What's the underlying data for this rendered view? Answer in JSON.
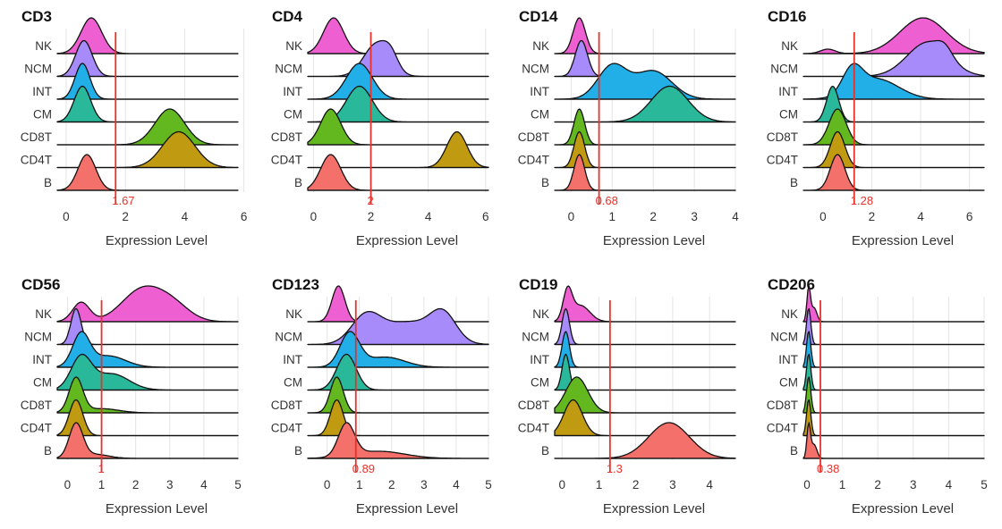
{
  "colors": {
    "NK": "#ee5fd1",
    "NCM": "#a78bfa",
    "INT": "#22aee6",
    "CM": "#2ab89a",
    "CD8T": "#62b81e",
    "CD4T": "#c09a10",
    "B": "#f4706a",
    "threshold": "#e8312a"
  },
  "chart_data": [
    {
      "type": "ridgeline",
      "title": "CD3",
      "xlabel": "Expression Level",
      "xlim": [
        -0.3,
        5.8
      ],
      "xticks": [
        0,
        2,
        4,
        6
      ],
      "threshold": 1.67,
      "threshold_label": "1.67",
      "series": [
        {
          "name": "NK",
          "peaks": [
            [
              0.85,
              0.35,
              1.0
            ]
          ]
        },
        {
          "name": "NCM",
          "peaks": [
            [
              0.6,
              0.28,
              1.0
            ]
          ]
        },
        {
          "name": "INT",
          "peaks": [
            [
              0.55,
              0.25,
              1.0
            ]
          ]
        },
        {
          "name": "CM",
          "peaks": [
            [
              0.55,
              0.28,
              1.0
            ]
          ]
        },
        {
          "name": "CD8T",
          "peaks": [
            [
              3.5,
              0.5,
              1.0
            ]
          ]
        },
        {
          "name": "CD4T",
          "peaks": [
            [
              3.8,
              0.55,
              1.1
            ]
          ]
        },
        {
          "name": "B",
          "peaks": [
            [
              0.7,
              0.3,
              1.0
            ]
          ]
        }
      ]
    },
    {
      "type": "ridgeline",
      "title": "CD4",
      "xlabel": "Expression Level",
      "xlim": [
        -0.2,
        6.1
      ],
      "xticks": [
        0,
        2,
        4,
        6
      ],
      "threshold": 2,
      "threshold_label": "2",
      "series": [
        {
          "name": "NK",
          "peaks": [
            [
              0.7,
              0.35,
              1.0
            ]
          ]
        },
        {
          "name": "NCM",
          "peaks": [
            [
              2.2,
              0.45,
              1.0
            ],
            [
              2.7,
              0.25,
              0.4
            ]
          ]
        },
        {
          "name": "INT",
          "peaks": [
            [
              1.6,
              0.45,
              1.0
            ]
          ]
        },
        {
          "name": "CM",
          "peaks": [
            [
              1.6,
              0.45,
              1.0
            ]
          ]
        },
        {
          "name": "CD8T",
          "peaks": [
            [
              0.6,
              0.35,
              1.0
            ]
          ]
        },
        {
          "name": "CD4T",
          "peaks": [
            [
              5.0,
              0.35,
              1.1
            ]
          ]
        },
        {
          "name": "B",
          "peaks": [
            [
              0.6,
              0.35,
              1.0
            ]
          ]
        }
      ]
    },
    {
      "type": "ridgeline",
      "title": "CD14",
      "xlabel": "Expression Level",
      "xlim": [
        -0.4,
        4.0
      ],
      "xticks": [
        0,
        1,
        2,
        3,
        4
      ],
      "threshold": 0.68,
      "threshold_label": "0.68",
      "series": [
        {
          "name": "NK",
          "peaks": [
            [
              0.2,
              0.15,
              1.0
            ]
          ]
        },
        {
          "name": "NCM",
          "peaks": [
            [
              0.25,
              0.15,
              1.0
            ]
          ]
        },
        {
          "name": "INT",
          "peaks": [
            [
              1.0,
              0.35,
              1.0
            ],
            [
              2.0,
              0.45,
              0.85
            ]
          ]
        },
        {
          "name": "CM",
          "peaks": [
            [
              2.4,
              0.45,
              1.2
            ]
          ]
        },
        {
          "name": "CD8T",
          "peaks": [
            [
              0.2,
              0.13,
              1.0
            ]
          ]
        },
        {
          "name": "CD4T",
          "peaks": [
            [
              0.2,
              0.13,
              1.0
            ]
          ]
        },
        {
          "name": "B",
          "peaks": [
            [
              0.2,
              0.13,
              1.0
            ]
          ]
        }
      ]
    },
    {
      "type": "ridgeline",
      "title": "CD16",
      "xlabel": "Expression Level",
      "xlim": [
        -0.8,
        6.6
      ],
      "xticks": [
        0,
        2,
        4,
        6
      ],
      "threshold": 1.28,
      "threshold_label": "1.28",
      "series": [
        {
          "name": "NK",
          "peaks": [
            [
              4.1,
              0.95,
              1.2
            ],
            [
              0.2,
              0.3,
              0.15
            ]
          ]
        },
        {
          "name": "NCM",
          "peaks": [
            [
              4.3,
              0.85,
              1.2
            ],
            [
              5.0,
              0.3,
              0.3
            ]
          ]
        },
        {
          "name": "INT",
          "peaks": [
            [
              1.2,
              0.4,
              0.9
            ],
            [
              2.2,
              0.9,
              0.75
            ]
          ]
        },
        {
          "name": "CM",
          "peaks": [
            [
              0.4,
              0.25,
              1.0
            ]
          ]
        },
        {
          "name": "CD8T",
          "peaks": [
            [
              0.6,
              0.35,
              1.0
            ]
          ]
        },
        {
          "name": "CD4T",
          "peaks": [
            [
              0.6,
              0.3,
              1.0
            ]
          ]
        },
        {
          "name": "B",
          "peaks": [
            [
              0.6,
              0.3,
              1.0
            ]
          ]
        }
      ]
    },
    {
      "type": "ridgeline",
      "title": "CD56",
      "xlabel": "Expression Level",
      "xlim": [
        -0.3,
        5.0
      ],
      "xticks": [
        0,
        1,
        2,
        3,
        4,
        5
      ],
      "threshold": 1,
      "threshold_label": "1",
      "series": [
        {
          "name": "NK",
          "peaks": [
            [
              0.4,
              0.25,
              0.6
            ],
            [
              2.2,
              0.6,
              1.0
            ],
            [
              3.1,
              0.5,
              0.45
            ]
          ]
        },
        {
          "name": "NCM",
          "peaks": [
            [
              0.25,
              0.15,
              1.0
            ]
          ]
        },
        {
          "name": "INT",
          "peaks": [
            [
              0.4,
              0.25,
              1.0
            ],
            [
              1.2,
              0.5,
              0.35
            ]
          ]
        },
        {
          "name": "CM",
          "peaks": [
            [
              0.4,
              0.3,
              1.0
            ],
            [
              1.3,
              0.5,
              0.5
            ]
          ]
        },
        {
          "name": "CD8T",
          "peaks": [
            [
              0.25,
              0.2,
              1.0
            ],
            [
              1.0,
              0.5,
              0.12
            ]
          ]
        },
        {
          "name": "CD4T",
          "peaks": [
            [
              0.25,
              0.2,
              1.0
            ]
          ]
        },
        {
          "name": "B",
          "peaks": [
            [
              0.25,
              0.2,
              1.0
            ],
            [
              0.8,
              0.4,
              0.12
            ]
          ]
        }
      ]
    },
    {
      "type": "ridgeline",
      "title": "CD123",
      "xlabel": "Expression Level",
      "xlim": [
        -0.6,
        5.0
      ],
      "xticks": [
        0,
        1,
        2,
        3,
        4,
        5
      ],
      "threshold": 0.89,
      "threshold_label": "0.89",
      "series": [
        {
          "name": "NK",
          "peaks": [
            [
              0.35,
              0.2,
              1.0
            ]
          ]
        },
        {
          "name": "NCM",
          "peaks": [
            [
              1.2,
              0.45,
              0.9
            ],
            [
              2.5,
              0.8,
              0.75
            ],
            [
              3.6,
              0.4,
              0.9
            ]
          ]
        },
        {
          "name": "INT",
          "peaks": [
            [
              0.7,
              0.3,
              1.0
            ],
            [
              1.8,
              0.6,
              0.3
            ]
          ]
        },
        {
          "name": "CM",
          "peaks": [
            [
              0.6,
              0.3,
              1.0
            ]
          ]
        },
        {
          "name": "CD8T",
          "peaks": [
            [
              0.3,
              0.2,
              1.0
            ]
          ]
        },
        {
          "name": "CD4T",
          "peaks": [
            [
              0.3,
              0.2,
              1.0
            ]
          ]
        },
        {
          "name": "B",
          "peaks": [
            [
              0.6,
              0.25,
              1.0
            ],
            [
              1.6,
              0.8,
              0.22
            ]
          ]
        }
      ]
    },
    {
      "type": "ridgeline",
      "title": "CD19",
      "xlabel": "Expression Level",
      "xlim": [
        -0.2,
        4.7
      ],
      "xticks": [
        0,
        1,
        2,
        3,
        4
      ],
      "threshold": 1.3,
      "threshold_label": "1.3",
      "series": [
        {
          "name": "NK",
          "peaks": [
            [
              0.15,
              0.12,
              1.0
            ],
            [
              0.5,
              0.25,
              0.55
            ]
          ]
        },
        {
          "name": "NCM",
          "peaks": [
            [
              0.1,
              0.1,
              1.0
            ]
          ]
        },
        {
          "name": "INT",
          "peaks": [
            [
              0.1,
              0.1,
              1.0
            ]
          ]
        },
        {
          "name": "CM",
          "peaks": [
            [
              0.1,
              0.1,
              1.0
            ]
          ]
        },
        {
          "name": "CD8T",
          "peaks": [
            [
              0.4,
              0.3,
              1.0
            ]
          ]
        },
        {
          "name": "CD4T",
          "peaks": [
            [
              0.3,
              0.25,
              1.0
            ]
          ]
        },
        {
          "name": "B",
          "peaks": [
            [
              2.9,
              0.55,
              1.2
            ]
          ]
        }
      ]
    },
    {
      "type": "ridgeline",
      "title": "CD206",
      "xlabel": "Expression Level",
      "xlim": [
        -0.1,
        5.0
      ],
      "xticks": [
        0,
        1,
        2,
        3,
        4,
        5
      ],
      "threshold": 0.38,
      "threshold_label": "0.38",
      "series": [
        {
          "name": "NK",
          "peaks": [
            [
              0.05,
              0.05,
              1.2
            ],
            [
              0.2,
              0.08,
              0.5
            ]
          ]
        },
        {
          "name": "NCM",
          "peaks": [
            [
              0.05,
              0.06,
              1.0
            ]
          ]
        },
        {
          "name": "INT",
          "peaks": [
            [
              0.05,
              0.06,
              1.0
            ]
          ]
        },
        {
          "name": "CM",
          "peaks": [
            [
              0.05,
              0.06,
              1.0
            ]
          ]
        },
        {
          "name": "CD8T",
          "peaks": [
            [
              0.05,
              0.06,
              1.0
            ]
          ]
        },
        {
          "name": "CD4T",
          "peaks": [
            [
              0.05,
              0.06,
              1.0
            ]
          ]
        },
        {
          "name": "B",
          "peaks": [
            [
              0.05,
              0.05,
              1.2
            ],
            [
              0.2,
              0.08,
              0.5
            ]
          ]
        }
      ]
    }
  ]
}
